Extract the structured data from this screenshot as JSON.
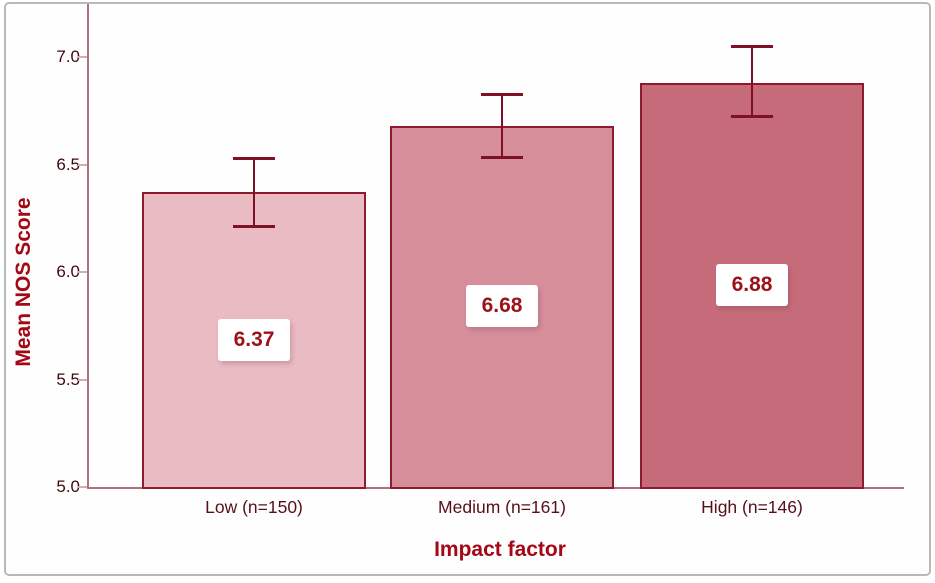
{
  "figure": {
    "y_axis_title": "Mean NOS Score",
    "x_axis_title": "Impact factor",
    "y_ticks": [
      "7.0",
      "6.5",
      "6.0",
      "5.5",
      "5.0"
    ]
  },
  "chart_data": {
    "type": "bar",
    "title": "",
    "xlabel": "Impact factor",
    "ylabel": "Mean NOS Score",
    "ylim": [
      5.0,
      7.0
    ],
    "grid": false,
    "legend": null,
    "categories": [
      "Low (n=150)",
      "Medium (n=161)",
      "High (n=146)"
    ],
    "values": [
      6.37,
      6.68,
      6.88
    ],
    "value_labels": [
      "6.37",
      "6.68",
      "6.88"
    ],
    "error_bars": [
      {
        "low": 6.21,
        "high": 6.53
      },
      {
        "low": 6.53,
        "high": 6.83
      },
      {
        "low": 6.72,
        "high": 7.05
      }
    ],
    "bar_colors": [
      "#eabbc3",
      "#d68e9b",
      "#c66b79"
    ],
    "bar_border_color": "#8f1a2e",
    "error_bar_color": "#7e1124"
  },
  "colors": {
    "background": "#ffffff",
    "frame_border": "#b9b9b9",
    "axis_line": "#b0717c",
    "tick_mark": "#cfadb3",
    "tick_label_text": "#40080d",
    "category_label_text": "#571019",
    "axis_title_text": "#a50714",
    "value_label_text": "#9c1219"
  }
}
